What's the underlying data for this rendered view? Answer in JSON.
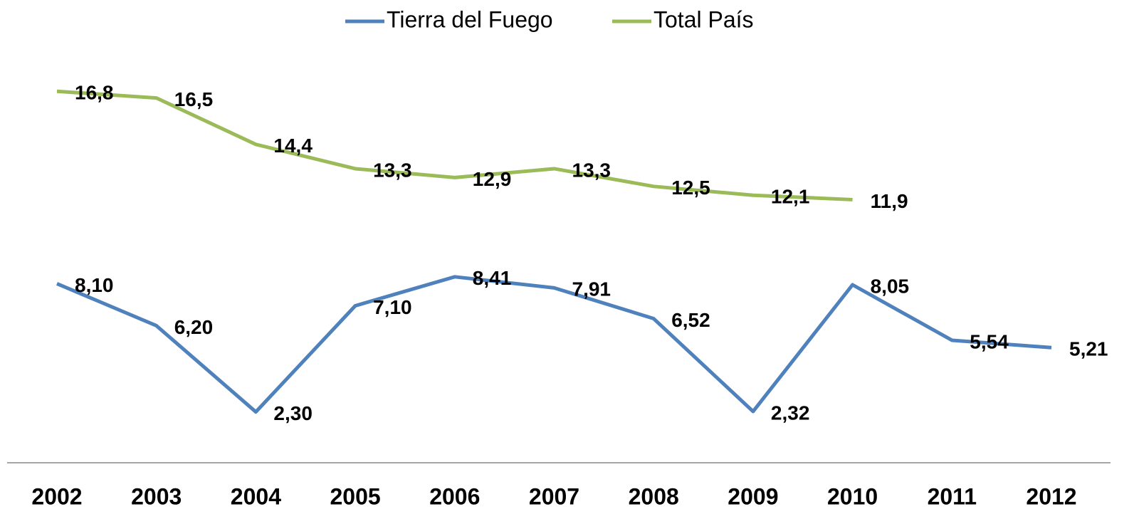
{
  "chart_data": {
    "type": "line",
    "categories": [
      "2002",
      "2003",
      "2004",
      "2005",
      "2006",
      "2007",
      "2008",
      "2009",
      "2010",
      "2011",
      "2012"
    ],
    "series": [
      {
        "name": "Tierra del Fuego",
        "color": "#4f81bd",
        "values": [
          8.1,
          6.2,
          2.3,
          7.1,
          8.41,
          7.91,
          6.52,
          2.32,
          8.05,
          5.54,
          5.21
        ],
        "value_labels": [
          "8,10",
          "6,20",
          "2,30",
          "7,10",
          "8,41",
          "7,91",
          "6,52",
          "2,32",
          "8,05",
          "5,54",
          "5,21"
        ]
      },
      {
        "name": "Total País",
        "color": "#9bbb59",
        "values": [
          16.8,
          16.5,
          14.4,
          13.3,
          12.9,
          13.3,
          12.5,
          12.1,
          11.9,
          null,
          null
        ],
        "value_labels": [
          "16,8",
          "16,5",
          "14,4",
          "13,3",
          "12,9",
          "13,3",
          "12,5",
          "12,1",
          "11,9",
          null,
          null
        ]
      }
    ],
    "ylim": [
      0,
      18
    ],
    "legend": "top"
  }
}
